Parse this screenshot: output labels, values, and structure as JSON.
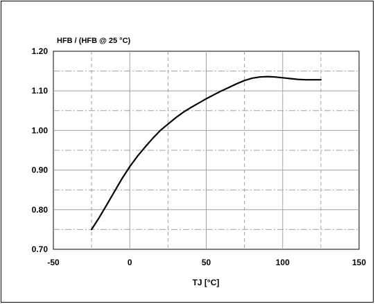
{
  "chart_data": {
    "type": "line",
    "title": "HFB / (HFB @ 25 °C)",
    "xlabel": "TJ [°C]",
    "ylabel": "",
    "xlim": [
      -50,
      150
    ],
    "ylim": [
      0.7,
      1.2
    ],
    "x_ticks": [
      -50,
      0,
      50,
      100,
      150
    ],
    "x_tick_labels": [
      "-50",
      "0",
      "50",
      "100",
      "150"
    ],
    "y_ticks": [
      0.7,
      0.8,
      0.9,
      1.0,
      1.1,
      1.2
    ],
    "y_tick_labels": [
      "0.70",
      "0.80",
      "0.90",
      "1.00",
      "1.10",
      "1.20"
    ],
    "grid": true,
    "series": [
      {
        "x": [
          -25,
          -20,
          -15,
          -10,
          -5,
          0,
          5,
          10,
          15,
          20,
          25,
          30,
          35,
          40,
          45,
          50,
          55,
          60,
          65,
          70,
          75,
          80,
          85,
          90,
          95,
          100,
          105,
          110,
          115,
          120,
          125
        ],
        "values": [
          0.75,
          0.78,
          0.813,
          0.846,
          0.879,
          0.909,
          0.935,
          0.958,
          0.98,
          1.0,
          1.016,
          1.032,
          1.046,
          1.058,
          1.069,
          1.08,
          1.09,
          1.1,
          1.109,
          1.118,
          1.126,
          1.132,
          1.135,
          1.136,
          1.135,
          1.133,
          1.131,
          1.129,
          1.128,
          1.128,
          1.128
        ],
        "color": "#000000"
      }
    ]
  }
}
